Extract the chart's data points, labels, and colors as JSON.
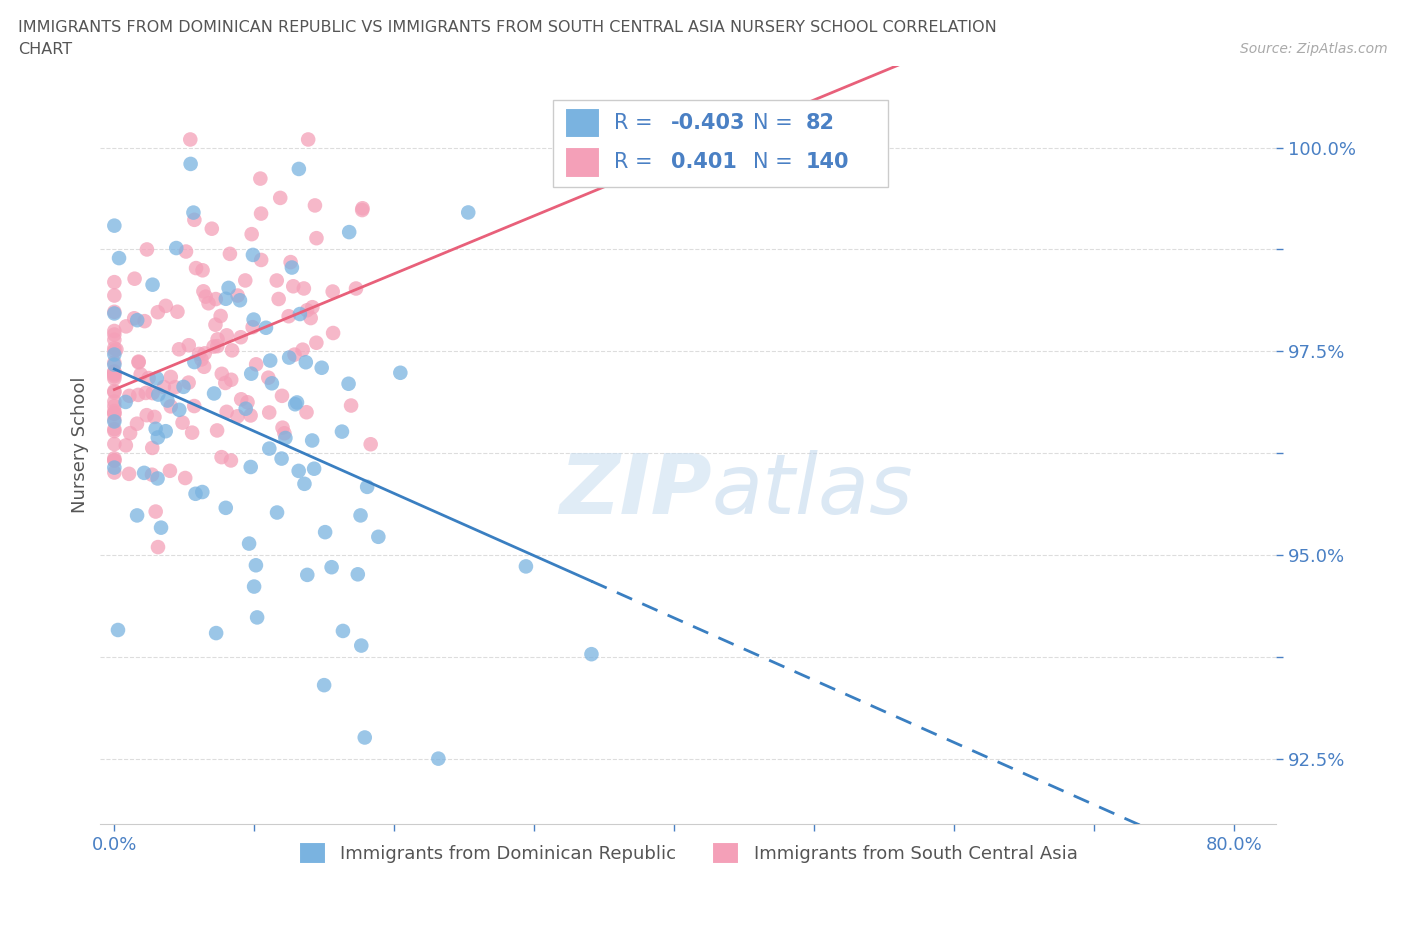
{
  "title_line1": "IMMIGRANTS FROM DOMINICAN REPUBLIC VS IMMIGRANTS FROM SOUTH CENTRAL ASIA NURSERY SCHOOL CORRELATION",
  "title_line2": "CHART",
  "source_text": "Source: ZipAtlas.com",
  "ylabel": "Nursery School",
  "xlim": [
    -0.01,
    0.83
  ],
  "ylim": [
    0.917,
    1.01
  ],
  "blue_color": "#7ab3e0",
  "pink_color": "#f4a0b8",
  "blue_line_color": "#3a7fc1",
  "pink_line_color": "#e8607a",
  "legend_R1": "-0.403",
  "legend_N1": "82",
  "legend_R2": "0.401",
  "legend_N2": "140",
  "watermark": "ZIPatlas",
  "legend_label1": "Immigrants from Dominican Republic",
  "legend_label2": "Immigrants from South Central Asia",
  "y_ticks": [
    0.925,
    0.9375,
    0.95,
    0.9625,
    0.975,
    0.9875,
    1.0
  ],
  "y_tick_labels": [
    "92.5%",
    "",
    "95.0%",
    "",
    "97.5%",
    "",
    "100.0%"
  ],
  "x_ticks": [
    0.0,
    0.1,
    0.2,
    0.3,
    0.4,
    0.5,
    0.6,
    0.7,
    0.8
  ],
  "x_tick_labels": [
    "0.0%",
    "",
    "",
    "",
    "",
    "",
    "",
    "",
    "80.0%"
  ],
  "grid_color": "#dddddd",
  "text_color": "#4a80c4",
  "title_color": "#555555"
}
